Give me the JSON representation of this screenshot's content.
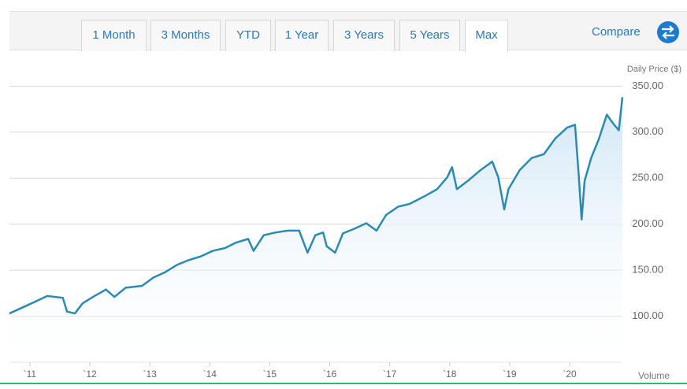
{
  "tabs": [
    "1 Month",
    "3 Months",
    "YTD",
    "1 Year",
    "3 Years",
    "5 Years",
    "Max"
  ],
  "compare": "Compare",
  "chart_data": {
    "type": "line",
    "y_axis_label": "Daily Price ($)",
    "volume_label": "Volume",
    "x": [
      2010.66,
      2011.03,
      2011.29,
      2011.55,
      2011.62,
      2011.75,
      2011.88,
      2012.08,
      2012.27,
      2012.41,
      2012.6,
      2012.87,
      2013.06,
      2013.26,
      2013.46,
      2013.65,
      2013.85,
      2014.05,
      2014.25,
      2014.44,
      2014.64,
      2014.73,
      2014.9,
      2015.1,
      2015.3,
      2015.49,
      2015.63,
      2015.76,
      2015.89,
      2015.95,
      2016.09,
      2016.22,
      2016.41,
      2016.61,
      2016.78,
      2016.94,
      2017.14,
      2017.33,
      2017.6,
      2017.79,
      2017.96,
      2018.04,
      2018.12,
      2018.32,
      2018.52,
      2018.71,
      2018.81,
      2018.91,
      2018.98,
      2019.17,
      2019.37,
      2019.57,
      2019.76,
      2019.96,
      2020.09,
      2020.15,
      2020.2,
      2020.25,
      2020.36,
      2020.49,
      2020.62,
      2020.72,
      2020.82,
      2020.88
    ],
    "series": [
      {
        "color": "#2a8ab5",
        "values": [
          103,
          114,
          122,
          120,
          105,
          103,
          114,
          122,
          129,
          121,
          131,
          133,
          142,
          148,
          156,
          161,
          165,
          171,
          174,
          180,
          184,
          171,
          188,
          191,
          193,
          193,
          169,
          188,
          191,
          176,
          169,
          190,
          195,
          201,
          193,
          210,
          219,
          222,
          231,
          238,
          251,
          262,
          238,
          248,
          259,
          268,
          251,
          216,
          238,
          259,
          272,
          276,
          293,
          305,
          308,
          255,
          205,
          247,
          272,
          293,
          319,
          310,
          302,
          338
        ]
      }
    ],
    "xlim": [
      2010.66,
      2020.88
    ],
    "xticks": [
      {
        "value": 2011,
        "label": "`11"
      },
      {
        "value": 2012,
        "label": "`12"
      },
      {
        "value": 2013,
        "label": "`13"
      },
      {
        "value": 2014,
        "label": "`14"
      },
      {
        "value": 2015,
        "label": "`15"
      },
      {
        "value": 2016,
        "label": "`16"
      },
      {
        "value": 2017,
        "label": "`17"
      },
      {
        "value": 2018,
        "label": "`18"
      },
      {
        "value": 2019,
        "label": "`19"
      },
      {
        "value": 2020,
        "label": "`20"
      }
    ],
    "ylim": [
      50,
      358
    ],
    "yticks": [
      {
        "value": 100,
        "label": "100.00"
      },
      {
        "value": 150,
        "label": "150.00"
      },
      {
        "value": 200,
        "label": "200.00"
      },
      {
        "value": 250,
        "label": "250.00"
      },
      {
        "value": 300,
        "label": "300.00"
      },
      {
        "value": 350,
        "label": "350.00"
      }
    ],
    "grid": true
  }
}
